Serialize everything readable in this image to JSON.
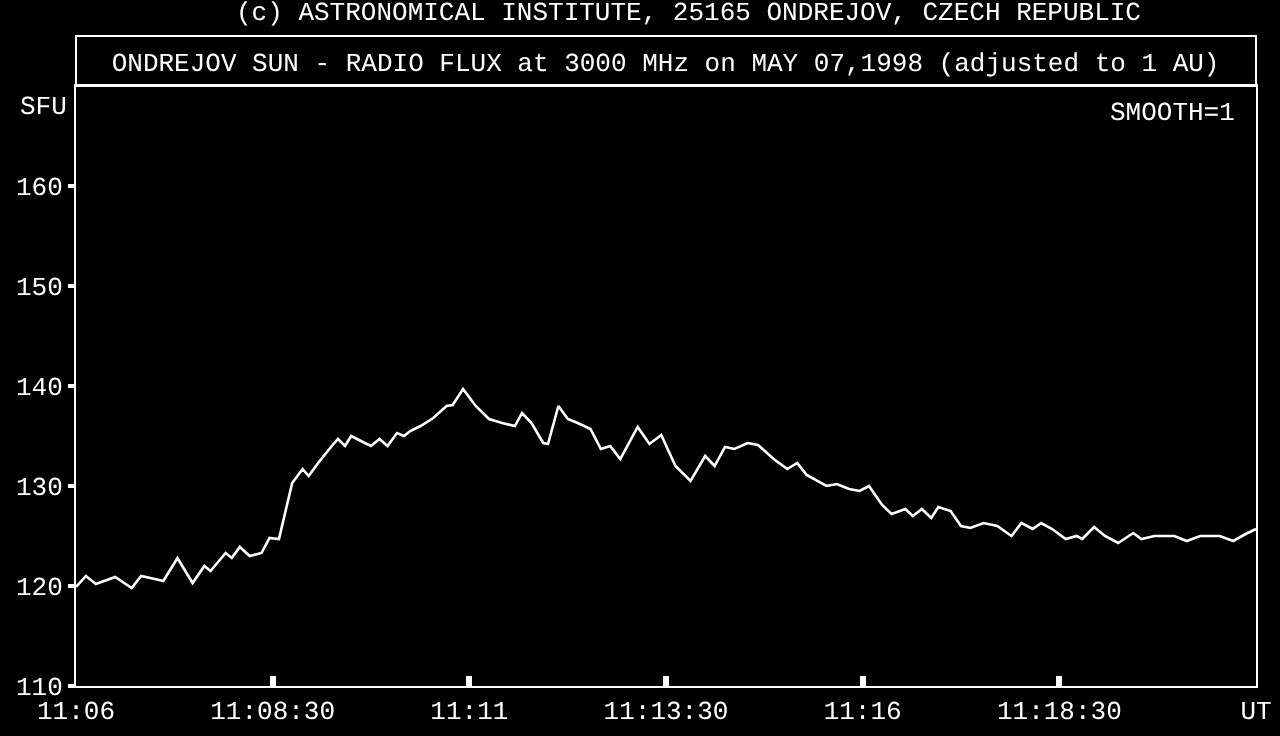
{
  "chart_data": {
    "type": "line",
    "title": "ONDREJOV SUN - RADIO FLUX at 3000 MHz on MAY 07,1998 (adjusted to 1 AU)",
    "ylabel": "SFU",
    "annotations": [
      "(c) ASTRONOMICAL INSTITUTE, 25165 ONDREJOV, CZECH REPUBLIC",
      "SMOOTH=1"
    ],
    "xlim": [
      11.1,
      11.35
    ],
    "xticks": [
      {
        "value": 11.1,
        "label": "11:06"
      },
      {
        "value": 11.141667,
        "label": "11:08:30"
      },
      {
        "value": 11.183333,
        "label": "11:11"
      },
      {
        "value": 11.225,
        "label": "11:13:30"
      },
      {
        "value": 11.266667,
        "label": "11:16"
      },
      {
        "value": 11.308333,
        "label": "11:18:30"
      },
      {
        "value": 11.35,
        "label": "UT"
      }
    ],
    "ylim": [
      110,
      170
    ],
    "yticks": [
      110,
      120,
      130,
      140,
      150,
      160
    ],
    "grid": false,
    "marker": "none",
    "line_style": "solid",
    "series": [
      {
        "color": "#ffffff",
        "x": [
          11.1,
          11.1021,
          11.1042,
          11.1083,
          11.1118,
          11.1138,
          11.1167,
          11.1185,
          11.1215,
          11.1247,
          11.1272,
          11.1285,
          11.1317,
          11.133,
          11.1347,
          11.1368,
          11.1393,
          11.141,
          11.143,
          11.1458,
          11.148,
          11.1493,
          11.1513,
          11.1542,
          11.1555,
          11.157,
          11.1583,
          11.1612,
          11.1625,
          11.1643,
          11.166,
          11.168,
          11.1695,
          11.1708,
          11.173,
          11.1757,
          11.1785,
          11.1798,
          11.182,
          11.1847,
          11.1875,
          11.1903,
          11.193,
          11.1945,
          11.1965,
          11.199,
          11.2,
          11.2022,
          11.2042,
          11.2063,
          11.209,
          11.2112,
          11.2132,
          11.2153,
          11.219,
          11.2215,
          11.224,
          11.227,
          11.2302,
          11.2333,
          11.2353,
          11.2375,
          11.2395,
          11.2423,
          11.2445,
          11.2478,
          11.2507,
          11.2528,
          11.2548,
          11.259,
          11.2612,
          11.2638,
          11.266,
          11.268,
          11.2708,
          11.2728,
          11.2757,
          11.2773,
          11.2792,
          11.2812,
          11.2827,
          11.2853,
          11.2875,
          11.2895,
          11.2923,
          11.2952,
          11.2982,
          11.3003,
          11.3027,
          11.3045,
          11.3068,
          11.3097,
          11.312,
          11.3132,
          11.3157,
          11.318,
          11.3208,
          11.324,
          11.3257,
          11.3285,
          11.3327,
          11.3353,
          11.3382,
          11.3423,
          11.3452,
          11.3478,
          11.35
        ],
        "values": [
          119.9,
          121.0,
          120.2,
          120.9,
          119.8,
          121.0,
          120.7,
          120.5,
          122.8,
          120.3,
          122.0,
          121.5,
          123.3,
          122.8,
          123.9,
          123.0,
          123.3,
          124.8,
          124.7,
          130.3,
          131.7,
          131.0,
          132.3,
          134.0,
          134.7,
          134.0,
          135.0,
          134.3,
          134.0,
          134.7,
          134.0,
          135.3,
          135.0,
          135.5,
          136.0,
          136.8,
          138.0,
          138.1,
          139.7,
          138.0,
          136.7,
          136.3,
          136.0,
          137.3,
          136.3,
          134.3,
          134.2,
          138.0,
          136.7,
          136.3,
          135.7,
          133.7,
          134.0,
          132.7,
          135.9,
          134.2,
          135.1,
          132.0,
          130.5,
          133.0,
          132.0,
          133.9,
          133.7,
          134.3,
          134.1,
          132.7,
          131.7,
          132.3,
          131.1,
          130.0,
          130.2,
          129.7,
          129.5,
          130.0,
          128.1,
          127.2,
          127.7,
          127.0,
          127.7,
          126.8,
          127.9,
          127.5,
          126.0,
          125.8,
          126.3,
          126.0,
          125.0,
          126.3,
          125.7,
          126.3,
          125.7,
          124.7,
          125.0,
          124.7,
          125.9,
          125.0,
          124.3,
          125.3,
          124.7,
          125.0,
          125.0,
          124.5,
          125.0,
          125.0,
          124.5,
          125.2,
          125.7
        ]
      }
    ]
  }
}
